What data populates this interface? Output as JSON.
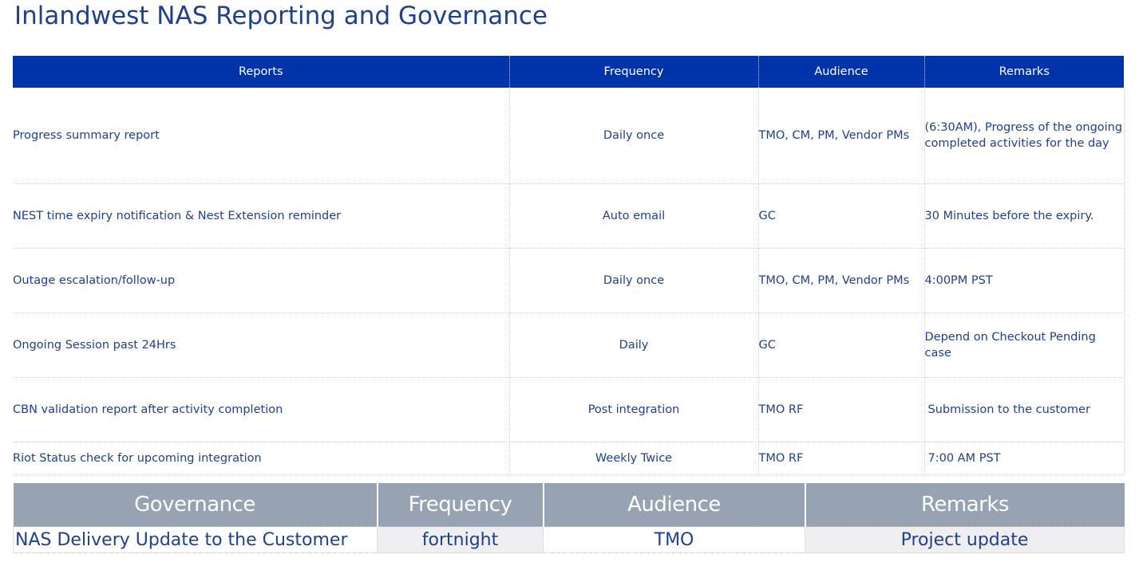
{
  "title": "Inlandwest NAS Reporting and Governance",
  "reports": {
    "headers": [
      "Reports",
      "Frequency",
      "Audience",
      "Remarks"
    ],
    "rows": [
      {
        "report": "Progress summary report",
        "frequency": "Daily once",
        "audience": "TMO, CM, PM, Vendor PMs",
        "remarks": "(6:30AM), Progress of the ongoing completed activities for the day"
      },
      {
        "report": "NEST time expiry notification & Nest Extension reminder",
        "frequency": "Auto email",
        "audience": "GC",
        "remarks": "30 Minutes before the expiry."
      },
      {
        "report": "Outage escalation/follow-up",
        "frequency": "Daily once",
        "audience": "TMO, CM, PM, Vendor PMs",
        "remarks": "4:00PM PST"
      },
      {
        "report": "Ongoing Session past 24Hrs",
        "frequency": "Daily",
        "audience": "GC",
        "remarks": "Depend on Checkout Pending case"
      },
      {
        "report": "CBN validation report after activity completion",
        "frequency": "Post integration",
        "audience": "TMO RF",
        "remarks": "Submission to the customer"
      },
      {
        "report": "Riot Status check for upcoming integration",
        "frequency": "Weekly Twice",
        "audience": "TMO RF",
        "remarks": "7:00 AM PST"
      }
    ]
  },
  "governance": {
    "headers": [
      "Governance",
      "Frequency",
      "Audience",
      "Remarks"
    ],
    "rows": [
      {
        "governance": "NAS Delivery Update to the Customer",
        "frequency": "fortnight",
        "audience": "TMO",
        "remarks": "Project update"
      }
    ]
  },
  "colors": {
    "title_text": "#1f3f8f",
    "reports_header_bg": "#0033a8",
    "governance_header_bg": "#97a2b2",
    "shaded_cell_bg": "#efeff1"
  }
}
